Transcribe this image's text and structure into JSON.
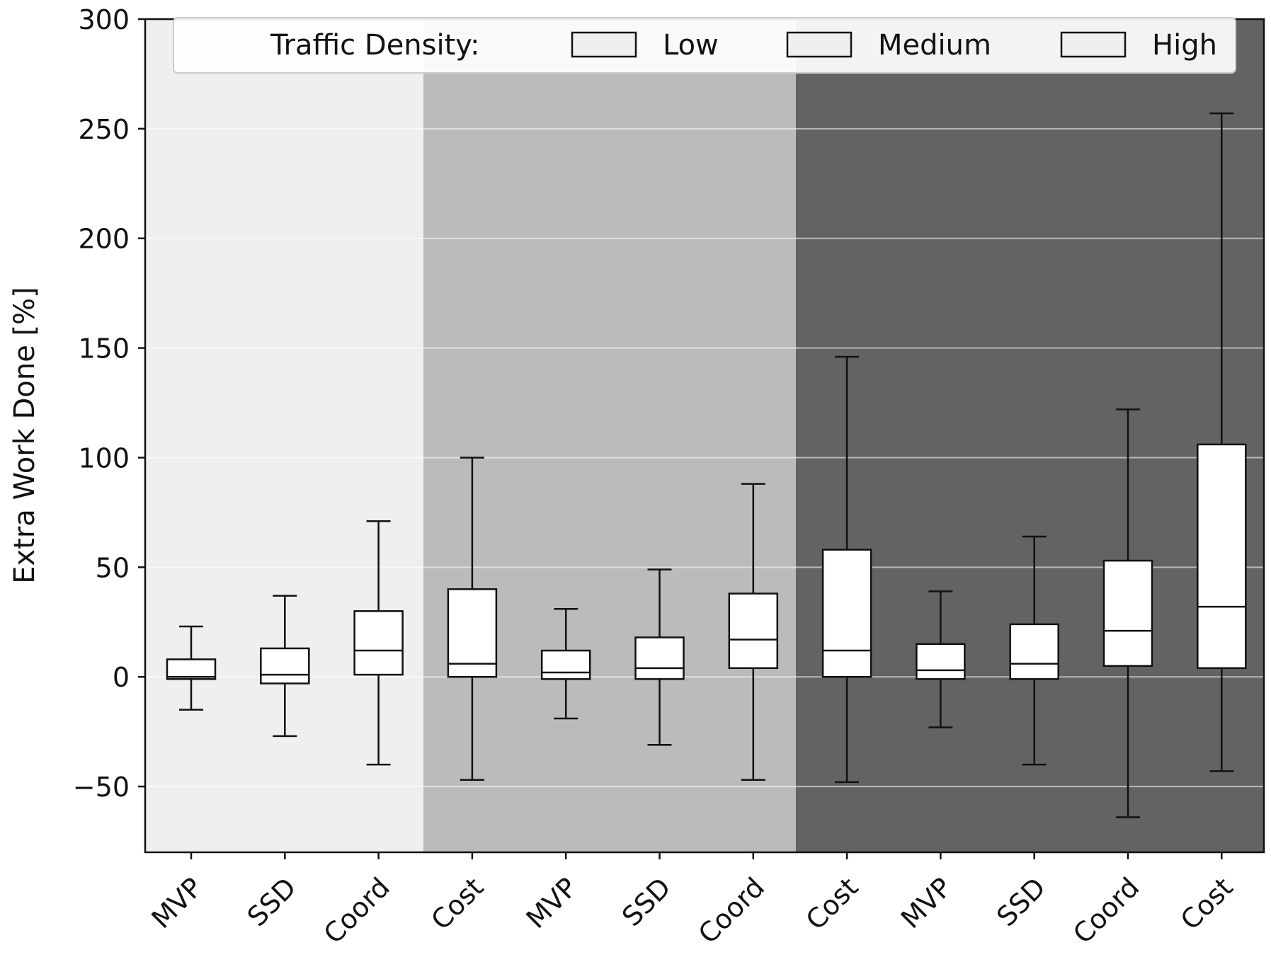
{
  "chart_data": {
    "type": "box",
    "title": "",
    "xlabel": "",
    "ylabel": "Extra Work Done [%]",
    "ylim": [
      -80,
      300
    ],
    "yticks": [
      300,
      250,
      200,
      150,
      100,
      50,
      0,
      -50
    ],
    "ytick_labels": [
      "300",
      "250",
      "200",
      "150",
      "100",
      "50",
      "0",
      "−50"
    ],
    "grid": true,
    "legend": {
      "title": "Traffic Density:",
      "placement": "top",
      "entries": [
        {
          "label": "Low",
          "color": "#efefef"
        },
        {
          "label": "Medium",
          "color": "#efefef"
        },
        {
          "label": "High",
          "color": "#efefef"
        }
      ]
    },
    "groups": [
      {
        "name": "Low",
        "color": "#efefef"
      },
      {
        "name": "Medium",
        "color": "#bbbbbb"
      },
      {
        "name": "High",
        "color": "#636363"
      }
    ],
    "categories": [
      "MVP",
      "SSD",
      "Coord",
      "Cost",
      "MVP",
      "SSD",
      "Coord",
      "Cost",
      "MVP",
      "SSD",
      "Coord",
      "Cost"
    ],
    "boxes": [
      {
        "group": "Low",
        "label": "MVP",
        "whislo": -15,
        "q1": -1,
        "med": 0,
        "q3": 8,
        "whishi": 23
      },
      {
        "group": "Low",
        "label": "SSD",
        "whislo": -27,
        "q1": -3,
        "med": 1,
        "q3": 13,
        "whishi": 37
      },
      {
        "group": "Low",
        "label": "Coord",
        "whislo": -40,
        "q1": 1,
        "med": 12,
        "q3": 30,
        "whishi": 71
      },
      {
        "group": "Low",
        "label": "Cost",
        "whislo": -47,
        "q1": 0,
        "med": 6,
        "q3": 40,
        "whishi": 100
      },
      {
        "group": "Medium",
        "label": "MVP",
        "whislo": -19,
        "q1": -1,
        "med": 2,
        "q3": 12,
        "whishi": 31
      },
      {
        "group": "Medium",
        "label": "SSD",
        "whislo": -31,
        "q1": -1,
        "med": 4,
        "q3": 18,
        "whishi": 49
      },
      {
        "group": "Medium",
        "label": "Coord",
        "whislo": -47,
        "q1": 4,
        "med": 17,
        "q3": 38,
        "whishi": 88
      },
      {
        "group": "Medium",
        "label": "Cost",
        "whislo": -48,
        "q1": 0,
        "med": 12,
        "q3": 58,
        "whishi": 146
      },
      {
        "group": "High",
        "label": "MVP",
        "whislo": -23,
        "q1": -1,
        "med": 3,
        "q3": 15,
        "whishi": 39
      },
      {
        "group": "High",
        "label": "SSD",
        "whislo": -40,
        "q1": -1,
        "med": 6,
        "q3": 24,
        "whishi": 64
      },
      {
        "group": "High",
        "label": "Coord",
        "whislo": -64,
        "q1": 5,
        "med": 21,
        "q3": 53,
        "whishi": 122
      },
      {
        "group": "High",
        "label": "Cost",
        "whislo": -43,
        "q1": 4,
        "med": 32,
        "q3": 106,
        "whishi": 257
      }
    ]
  }
}
